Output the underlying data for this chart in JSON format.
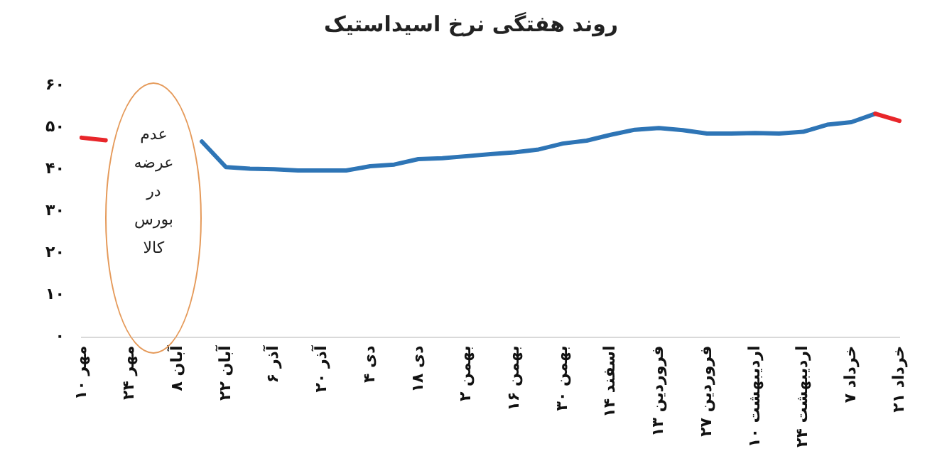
{
  "chart_data": {
    "type": "line",
    "title": "روند هفتگی نرخ اسیداستیک",
    "categories": [
      "۱۰ مهر",
      null,
      "۲۴ مهر",
      null,
      "۸ آبان",
      null,
      "۲۲ آبان",
      null,
      "۶ آذر",
      null,
      "۲۰ آذر",
      null,
      "۴ دی",
      null,
      "۱۸ دی",
      null,
      "۲ بهمن",
      null,
      "۱۶ بهمن",
      null,
      "۳۰ بهمن",
      null,
      "۱۴ اسفند",
      null,
      "۱۳ فروردین",
      null,
      "۲۷ فروردین",
      null,
      "۱۰ اردیبهشت",
      null,
      "۲۴ اردیبهشت",
      null,
      "۷ خرداد",
      null,
      "۲۱ خرداد"
    ],
    "series": [
      {
        "color": "#e8262a",
        "values": [
          47.5,
          46.9,
          null,
          null,
          null,
          null,
          null,
          null,
          null,
          null,
          null,
          null,
          null,
          null,
          null,
          null,
          null,
          null,
          null,
          null,
          null,
          null,
          null,
          null,
          null,
          null,
          null,
          null,
          null,
          null,
          null,
          null,
          null,
          53.2,
          51.5
        ]
      },
      {
        "color": "#2e75b6",
        "values": [
          null,
          null,
          null,
          null,
          null,
          46.6,
          40.5,
          40.1,
          40.0,
          39.7,
          39.7,
          39.7,
          40.7,
          41.1,
          42.4,
          42.6,
          43.1,
          43.6,
          44.0,
          44.7,
          46.1,
          46.8,
          48.2,
          49.4,
          49.8,
          49.3,
          48.5,
          48.5,
          48.6,
          48.5,
          48.9,
          50.6,
          51.2,
          53.2,
          null
        ]
      }
    ],
    "ylim": [
      0,
      60
    ],
    "yticks": [
      {
        "value": 0,
        "label": "۰"
      },
      {
        "value": 10,
        "label": "۱۰"
      },
      {
        "value": 20,
        "label": "۲۰"
      },
      {
        "value": 30,
        "label": "۳۰"
      },
      {
        "value": 40,
        "label": "۴۰"
      },
      {
        "value": 50,
        "label": "۵۰"
      },
      {
        "value": 60,
        "label": "۶۰"
      }
    ],
    "annotations": [
      "عدم عرضه در بورس کالا"
    ],
    "grid": false,
    "legend": false,
    "marker": "none",
    "line_style": "solid"
  }
}
